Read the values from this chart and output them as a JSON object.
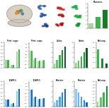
{
  "bg_color": "#ffffff",
  "panel_C": {
    "bars": [
      1.2,
      2.8,
      4.5
    ],
    "colors": [
      "#aad4a0",
      "#3cb34a",
      "#1a7a28"
    ],
    "ylim": [
      0,
      6
    ]
  },
  "panel_D": {
    "n_groups": 3,
    "series": [
      [
        1.0,
        0.35,
        2.2
      ],
      [
        1.0,
        0.4,
        2.5
      ]
    ],
    "colors": [
      "#aad4a0",
      "#3cb34a"
    ],
    "ylim": [
      0,
      3.5
    ]
  },
  "panel_E": {
    "n_groups": 4,
    "series": [
      [
        1.0,
        0.5,
        0.38,
        0.42
      ],
      [
        1.0,
        0.55,
        0.42,
        0.46
      ]
    ],
    "colors": [
      "#aad4a0",
      "#3cb34a"
    ],
    "ylim": [
      0,
      1.5
    ]
  },
  "panel_F": {
    "values": [
      0.8,
      1.5,
      2.4,
      3.5,
      4.2
    ],
    "colors": [
      "#aad4a0",
      "#5dc865",
      "#3cb34a",
      "#1e8c30",
      "#0f5c1e"
    ],
    "ylim": [
      0,
      5
    ]
  },
  "panel_G": {
    "values": [
      0.9,
      1.4,
      2.2,
      3.0,
      3.8
    ],
    "colors": [
      "#aad4a0",
      "#5dc865",
      "#3cb34a",
      "#1e8c30",
      "#0f5c1e"
    ],
    "ylim": [
      0,
      5
    ]
  },
  "panel_H": {
    "values": [
      1.8,
      0.9,
      0.4
    ],
    "colors": [
      "#3cb34a",
      "#1e8c30",
      "#0f5c1e"
    ],
    "ylim": [
      0,
      2.5
    ]
  },
  "panel_I": {
    "n_groups": 3,
    "series": [
      [
        1.0,
        0.4,
        2.1
      ],
      [
        1.0,
        0.45,
        2.4
      ]
    ],
    "colors": [
      "#90caf9",
      "#1565c0"
    ],
    "ylim": [
      0,
      3.5
    ]
  },
  "panel_J": {
    "n_groups": 4,
    "series": [
      [
        1.0,
        0.55,
        0.42,
        0.46
      ],
      [
        1.0,
        0.6,
        0.46,
        0.5
      ]
    ],
    "colors": [
      "#90caf9",
      "#1565c0"
    ],
    "ylim": [
      0,
      1.5
    ]
  },
  "panel_K": {
    "values": [
      0.8,
      1.3,
      2.0,
      2.8,
      3.5
    ],
    "colors": [
      "#90caf9",
      "#64b5f6",
      "#42a5f5",
      "#1e88e5",
      "#1565c0"
    ],
    "ylim": [
      0,
      5
    ]
  },
  "panel_L": {
    "values": [
      3.5,
      2.8,
      2.0,
      1.3,
      0.8
    ],
    "colors": [
      "#90caf9",
      "#64b5f6",
      "#42a5f5",
      "#1e88e5",
      "#1565c0"
    ],
    "ylim": [
      0,
      5
    ]
  },
  "panel_M": {
    "values": [
      0.8,
      1.5,
      2.2,
      3.2
    ],
    "colors": [
      "#aad4a0",
      "#5dc865",
      "#3cb34a",
      "#1e8c30"
    ],
    "ylim": [
      0,
      4
    ]
  },
  "micro_colors": [
    [
      "#1a2535",
      "#2a0808",
      "#082a10",
      "#050510"
    ],
    [
      "#1e2e40",
      "#300a0a",
      "#0a300c",
      "#060612"
    ],
    [
      "#141e2a",
      "#200606",
      "#062008",
      "#040408"
    ]
  ]
}
